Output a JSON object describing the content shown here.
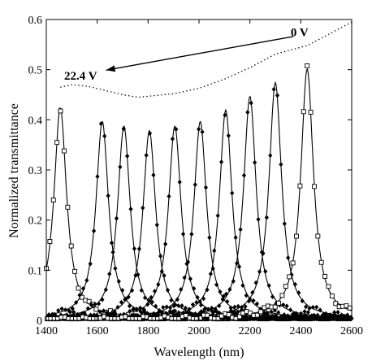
{
  "chart_data": {
    "type": "line",
    "title": "",
    "xlabel": "Wavelength (nm)",
    "ylabel": "Normalized transmittance",
    "xlim": [
      1400,
      2600
    ],
    "ylim": [
      0,
      0.6
    ],
    "xticks": [
      "1400",
      "1600",
      "1800",
      "2000",
      "2200",
      "2400",
      "2600"
    ],
    "yticks": [
      "0",
      "0.1",
      "0.2",
      "0.3",
      "0.4",
      "0.5",
      "0.6"
    ],
    "grid": false,
    "legend": "none",
    "colors": {
      "line": "#000000",
      "background": "#ffffff"
    },
    "peaks": [
      {
        "center": 1455,
        "height": 0.465,
        "marker": "square"
      },
      {
        "center": 1620,
        "height": 0.435,
        "marker": "diamond"
      },
      {
        "center": 1705,
        "height": 0.425,
        "marker": "diamond"
      },
      {
        "center": 1805,
        "height": 0.415,
        "marker": "diamond"
      },
      {
        "center": 1905,
        "height": 0.425,
        "marker": "diamond"
      },
      {
        "center": 2005,
        "height": 0.435,
        "marker": "diamond"
      },
      {
        "center": 2105,
        "height": 0.46,
        "marker": "diamond"
      },
      {
        "center": 2200,
        "height": 0.49,
        "marker": "diamond"
      },
      {
        "center": 2300,
        "height": 0.52,
        "marker": "diamond"
      },
      {
        "center": 2425,
        "height": 0.55,
        "marker": "square"
      }
    ],
    "envelope": {
      "style": "dotted",
      "x": [
        1455,
        1500,
        1560,
        1620,
        1700,
        1760,
        1800,
        1900,
        2000,
        2100,
        2200,
        2300,
        2425,
        2500,
        2600
      ],
      "y": [
        0.465,
        0.47,
        0.467,
        0.46,
        0.45,
        0.445,
        0.447,
        0.452,
        0.463,
        0.481,
        0.504,
        0.531,
        0.548,
        0.568,
        0.595
      ]
    },
    "annotations": [
      {
        "text": "0 V",
        "x": 2395,
        "y": 0.575
      },
      {
        "text": "22.4 V",
        "x": 1535,
        "y": 0.488
      }
    ],
    "arrow": {
      "from": [
        2370,
        0.566
      ],
      "to": [
        1635,
        0.499
      ]
    }
  }
}
